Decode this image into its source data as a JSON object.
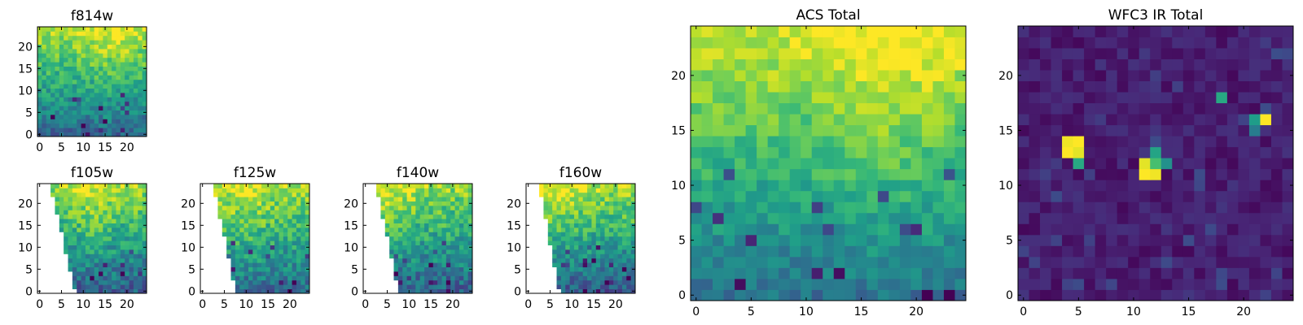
{
  "figure": {
    "background": "#ffffff",
    "colormap": "viridis",
    "colormap_stops": [
      "#440154",
      "#482878",
      "#3e4989",
      "#31688e",
      "#26828e",
      "#1f9e89",
      "#35b779",
      "#6ece58",
      "#b5de2b",
      "#fde725"
    ]
  },
  "chart_data": [
    {
      "type": "heatmap",
      "title": "f814w",
      "grid_size": [
        25,
        25
      ],
      "xlim": [
        -0.5,
        24.5
      ],
      "ylim": [
        -0.5,
        24.5
      ],
      "xticks": [
        0,
        5,
        10,
        15,
        20
      ],
      "yticks": [
        0,
        5,
        10,
        15,
        20
      ],
      "pattern": "gradient",
      "values_description": "normalized intensity 0-1, rising from ~0.35 at y=0 to ~0.9 at y=24 with pixel noise",
      "value_range": [
        0,
        1
      ],
      "params": {
        "base": 0.33,
        "slope": 0.55,
        "noise": 0.26,
        "bright_x": 17,
        "seed": 11
      }
    },
    {
      "type": "heatmap",
      "title": "f105w",
      "grid_size": [
        25,
        25
      ],
      "xlim": [
        -0.5,
        24.5
      ],
      "ylim": [
        -0.5,
        24.5
      ],
      "xticks": [
        0,
        5,
        10,
        15,
        20
      ],
      "yticks": [
        0,
        5,
        10,
        15,
        20
      ],
      "pattern": "masked-gradient",
      "mask": "left wedge without data (white), boundary from x≈3 at y=24 to x≈8 at y=0",
      "value_range": [
        0,
        1
      ],
      "params": {
        "base": 0.3,
        "slope": 0.55,
        "noise": 0.3,
        "bright_x": 12,
        "seed": 23,
        "mask_top": 3.0,
        "mask_bottom": 8.5
      }
    },
    {
      "type": "heatmap",
      "title": "f125w",
      "grid_size": [
        25,
        25
      ],
      "xlim": [
        -0.5,
        24.5
      ],
      "ylim": [
        -0.5,
        24.5
      ],
      "xticks": [
        0,
        5,
        10,
        15,
        20
      ],
      "yticks": [
        0,
        5,
        10,
        15,
        20
      ],
      "pattern": "masked-gradient",
      "mask": "left wedge without data (white), boundary from x≈3 at y=24 to x≈8 at y=0",
      "value_range": [
        0,
        1
      ],
      "params": {
        "base": 0.35,
        "slope": 0.5,
        "noise": 0.3,
        "bright_x": 10,
        "seed": 37,
        "mask_top": 3.0,
        "mask_bottom": 8.0
      }
    },
    {
      "type": "heatmap",
      "title": "f140w",
      "grid_size": [
        25,
        25
      ],
      "xlim": [
        -0.5,
        24.5
      ],
      "ylim": [
        -0.5,
        24.5
      ],
      "xticks": [
        0,
        5,
        10,
        15,
        20
      ],
      "yticks": [
        0,
        5,
        10,
        15,
        20
      ],
      "pattern": "masked-gradient",
      "mask": "left wedge without data (white), boundary from x≈3 at y=24 to x≈8 at y=0",
      "value_range": [
        0,
        1
      ],
      "params": {
        "base": 0.3,
        "slope": 0.55,
        "noise": 0.3,
        "bright_x": 6,
        "seed": 51,
        "mask_top": 3.0,
        "mask_bottom": 8.0
      }
    },
    {
      "type": "heatmap",
      "title": "f160w",
      "grid_size": [
        25,
        25
      ],
      "xlim": [
        -0.5,
        24.5
      ],
      "ylim": [
        -0.5,
        24.5
      ],
      "xticks": [
        0,
        5,
        10,
        15,
        20
      ],
      "yticks": [
        0,
        5,
        10,
        15,
        20
      ],
      "pattern": "masked-gradient",
      "mask": "left wedge without data (white), boundary from x≈3 at y=24 to x≈8 at y=0",
      "value_range": [
        0,
        1
      ],
      "params": {
        "base": 0.28,
        "slope": 0.6,
        "noise": 0.28,
        "bright_x": 6,
        "seed": 67,
        "mask_top": 3.0,
        "mask_bottom": 7.5
      }
    },
    {
      "type": "heatmap",
      "title": "ACS Total",
      "grid_size": [
        25,
        25
      ],
      "xlim": [
        -0.5,
        24.5
      ],
      "ylim": [
        -0.5,
        24.5
      ],
      "xticks": [
        0,
        5,
        10,
        15,
        20
      ],
      "yticks": [
        0,
        5,
        10,
        15,
        20
      ],
      "pattern": "gradient",
      "values_description": "normalized intensity 0-1, ~0.4 near y=0 rising to ~0.95 near the top, brightest around x=18,y=22",
      "value_range": [
        0,
        1
      ],
      "params": {
        "base": 0.38,
        "slope": 0.55,
        "noise": 0.2,
        "bright_x": 18,
        "seed": 83
      }
    },
    {
      "type": "heatmap",
      "title": "WFC3 IR Total",
      "grid_size": [
        25,
        25
      ],
      "xlim": [
        -0.5,
        24.5
      ],
      "ylim": [
        -0.5,
        24.5
      ],
      "xticks": [
        0,
        5,
        10,
        15,
        20
      ],
      "yticks": [
        0,
        5,
        10,
        15,
        20
      ],
      "pattern": "background-with-hotspots",
      "values_description": "mostly dark background ~0.08-0.2 with bright hot pixels",
      "value_range": [
        0,
        1
      ],
      "params": {
        "base": 0.08,
        "slope": 0.0,
        "noise": 0.12,
        "bright_x": 12,
        "seed": 97
      },
      "hotspots": [
        {
          "x": 4,
          "y": 13,
          "value": 1.0
        },
        {
          "x": 5,
          "y": 13,
          "value": 0.96
        },
        {
          "x": 4,
          "y": 14,
          "value": 0.98
        },
        {
          "x": 5,
          "y": 14,
          "value": 1.0
        },
        {
          "x": 5,
          "y": 12,
          "value": 0.6
        },
        {
          "x": 11,
          "y": 11,
          "value": 1.0
        },
        {
          "x": 12,
          "y": 11,
          "value": 0.98
        },
        {
          "x": 11,
          "y": 12,
          "value": 0.96
        },
        {
          "x": 12,
          "y": 12,
          "value": 0.7
        },
        {
          "x": 12,
          "y": 13,
          "value": 0.58
        },
        {
          "x": 13,
          "y": 12,
          "value": 0.5
        },
        {
          "x": 18,
          "y": 18,
          "value": 0.6
        },
        {
          "x": 22,
          "y": 16,
          "value": 1.0
        },
        {
          "x": 21,
          "y": 16,
          "value": 0.55
        },
        {
          "x": 21,
          "y": 15,
          "value": 0.42
        }
      ]
    }
  ]
}
